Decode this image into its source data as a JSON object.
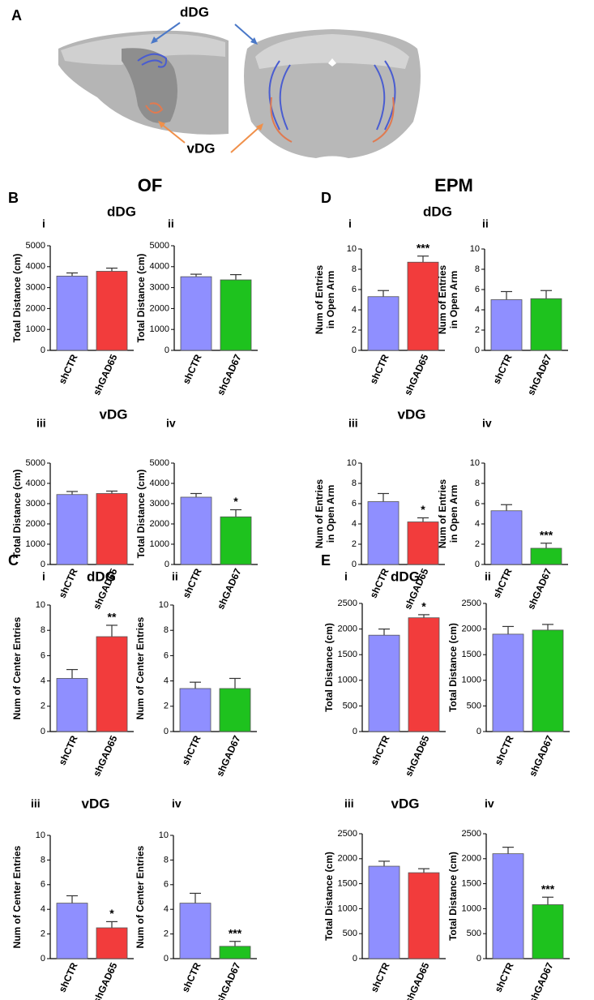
{
  "panel_a": {
    "label": "A",
    "dorsal": "dDG",
    "ventral": "vDG"
  },
  "headers": {
    "of": "OF",
    "epm": "EPM"
  },
  "chart_data": [
    {
      "type": "bar",
      "panel": "B",
      "sublabel": "i",
      "group": "dDG",
      "ylabel": [
        "Total Distance (cm)"
      ],
      "categories": [
        "shCTR",
        "shGAD65"
      ],
      "values": [
        3550,
        3780
      ],
      "errors": [
        150,
        150
      ],
      "colors": [
        "#8f8fff",
        "#f23c3c"
      ],
      "ylim": [
        0,
        5000
      ],
      "yticks": [
        0,
        1000,
        2000,
        3000,
        4000,
        5000
      ]
    },
    {
      "type": "bar",
      "sublabel": "ii",
      "ylabel": [
        "Total Distance (cm)"
      ],
      "categories": [
        "shCTR",
        "shGAD67"
      ],
      "values": [
        3520,
        3370
      ],
      "errors": [
        120,
        250
      ],
      "colors": [
        "#8f8fff",
        "#1ec21e"
      ],
      "ylim": [
        0,
        5000
      ],
      "yticks": [
        0,
        1000,
        2000,
        3000,
        4000,
        5000
      ]
    },
    {
      "type": "bar",
      "sublabel": "iii",
      "group": "vDG",
      "ylabel": [
        "Total Distance (cm)"
      ],
      "categories": [
        "shCTR",
        "shGAD65"
      ],
      "values": [
        3450,
        3500
      ],
      "errors": [
        150,
        120
      ],
      "colors": [
        "#8f8fff",
        "#f23c3c"
      ],
      "ylim": [
        0,
        5000
      ],
      "yticks": [
        0,
        1000,
        2000,
        3000,
        4000,
        5000
      ]
    },
    {
      "type": "bar",
      "sublabel": "iv",
      "ylabel": [
        "Total Distance (cm)"
      ],
      "categories": [
        "shCTR",
        "shGAD67"
      ],
      "values": [
        3320,
        2350
      ],
      "errors": [
        180,
        350
      ],
      "colors": [
        "#8f8fff",
        "#1ec21e"
      ],
      "ylim": [
        0,
        5000
      ],
      "yticks": [
        0,
        1000,
        2000,
        3000,
        4000,
        5000
      ],
      "annotation": "*"
    },
    {
      "type": "bar",
      "panel": "C",
      "sublabel": "i",
      "group": "dDG",
      "ylabel": [
        "Num of Center Entries"
      ],
      "categories": [
        "shCTR",
        "shGAD65"
      ],
      "values": [
        4.2,
        7.5
      ],
      "errors": [
        0.7,
        0.9
      ],
      "colors": [
        "#8f8fff",
        "#f23c3c"
      ],
      "ylim": [
        0,
        10
      ],
      "yticks": [
        0,
        2,
        4,
        6,
        8,
        10
      ],
      "annotation": "**"
    },
    {
      "type": "bar",
      "sublabel": "ii",
      "ylabel": [
        "Num of Center Entries"
      ],
      "categories": [
        "shCTR",
        "shGAD67"
      ],
      "values": [
        3.4,
        3.4
      ],
      "errors": [
        0.5,
        0.8
      ],
      "colors": [
        "#8f8fff",
        "#1ec21e"
      ],
      "ylim": [
        0,
        10
      ],
      "yticks": [
        0,
        2,
        4,
        6,
        8,
        10
      ]
    },
    {
      "type": "bar",
      "sublabel": "iii",
      "group": "vDG",
      "ylabel": [
        "Num of Center Entries"
      ],
      "categories": [
        "shCTR",
        "shGAD65"
      ],
      "values": [
        4.5,
        2.5
      ],
      "errors": [
        0.6,
        0.5
      ],
      "colors": [
        "#8f8fff",
        "#f23c3c"
      ],
      "ylim": [
        0,
        10
      ],
      "yticks": [
        0,
        2,
        4,
        6,
        8,
        10
      ],
      "annotation": "*"
    },
    {
      "type": "bar",
      "sublabel": "iv",
      "ylabel": [
        "Num of Center Entries"
      ],
      "categories": [
        "shCTR",
        "shGAD67"
      ],
      "values": [
        4.5,
        1.0
      ],
      "errors": [
        0.8,
        0.4
      ],
      "colors": [
        "#8f8fff",
        "#1ec21e"
      ],
      "ylim": [
        0,
        10
      ],
      "yticks": [
        0,
        2,
        4,
        6,
        8,
        10
      ],
      "annotation": "***"
    },
    {
      "type": "bar",
      "panel": "D",
      "sublabel": "i",
      "group": "dDG",
      "ylabel": [
        "Num of Entries",
        "in Open Arm"
      ],
      "categories": [
        "shCTR",
        "shGAD65"
      ],
      "values": [
        5.3,
        8.7
      ],
      "errors": [
        0.6,
        0.6
      ],
      "colors": [
        "#8f8fff",
        "#f23c3c"
      ],
      "ylim": [
        0,
        10
      ],
      "yticks": [
        0,
        2,
        4,
        6,
        8,
        10
      ],
      "annotation": "***"
    },
    {
      "type": "bar",
      "sublabel": "ii",
      "ylabel": [
        "Num of Entries",
        "in Open Arm"
      ],
      "categories": [
        "shCTR",
        "shGAD67"
      ],
      "values": [
        5.0,
        5.1
      ],
      "errors": [
        0.8,
        0.8
      ],
      "colors": [
        "#8f8fff",
        "#1ec21e"
      ],
      "ylim": [
        0,
        10
      ],
      "yticks": [
        0,
        2,
        4,
        6,
        8,
        10
      ]
    },
    {
      "type": "bar",
      "sublabel": "iii",
      "group": "vDG",
      "ylabel": [
        "Num of Entries",
        "in Open Arm"
      ],
      "categories": [
        "shCTR",
        "shGAD65"
      ],
      "values": [
        6.2,
        4.2
      ],
      "errors": [
        0.8,
        0.4
      ],
      "colors": [
        "#8f8fff",
        "#f23c3c"
      ],
      "ylim": [
        0,
        10
      ],
      "yticks": [
        0,
        2,
        4,
        6,
        8,
        10
      ],
      "annotation": "*"
    },
    {
      "type": "bar",
      "sublabel": "iv",
      "ylabel": [
        "Num of Entries",
        "in Open Arm"
      ],
      "categories": [
        "shCTR",
        "shGAD67"
      ],
      "values": [
        5.3,
        1.6
      ],
      "errors": [
        0.6,
        0.5
      ],
      "colors": [
        "#8f8fff",
        "#1ec21e"
      ],
      "ylim": [
        0,
        10
      ],
      "yticks": [
        0,
        2,
        4,
        6,
        8,
        10
      ],
      "annotation": "***"
    },
    {
      "type": "bar",
      "panel": "E",
      "sublabel": "i",
      "group": "dDG",
      "ylabel": [
        "Total Distance (cm)"
      ],
      "categories": [
        "shCTR",
        "shGAD65"
      ],
      "values": [
        1880,
        2220
      ],
      "errors": [
        120,
        60
      ],
      "colors": [
        "#8f8fff",
        "#f23c3c"
      ],
      "ylim": [
        0,
        2500
      ],
      "yticks": [
        0,
        500,
        1000,
        1500,
        2000,
        2500
      ],
      "annotation": "*"
    },
    {
      "type": "bar",
      "sublabel": "ii",
      "ylabel": [
        "Total Distance (cm)"
      ],
      "categories": [
        "shCTR",
        "shGAD67"
      ],
      "values": [
        1900,
        1980
      ],
      "errors": [
        150,
        110
      ],
      "colors": [
        "#8f8fff",
        "#1ec21e"
      ],
      "ylim": [
        0,
        2500
      ],
      "yticks": [
        0,
        500,
        1000,
        1500,
        2000,
        2500
      ]
    },
    {
      "type": "bar",
      "sublabel": "iii",
      "group": "vDG",
      "ylabel": [
        "Total Distance (cm)"
      ],
      "categories": [
        "shCTR",
        "shGAD65"
      ],
      "values": [
        1850,
        1720
      ],
      "errors": [
        100,
        80
      ],
      "colors": [
        "#8f8fff",
        "#f23c3c"
      ],
      "ylim": [
        0,
        2500
      ],
      "yticks": [
        0,
        500,
        1000,
        1500,
        2000,
        2500
      ]
    },
    {
      "type": "bar",
      "sublabel": "iv",
      "ylabel": [
        "Total Distance (cm)"
      ],
      "categories": [
        "shCTR",
        "shGAD67"
      ],
      "values": [
        2100,
        1080
      ],
      "errors": [
        130,
        150
      ],
      "colors": [
        "#8f8fff",
        "#1ec21e"
      ],
      "ylim": [
        0,
        2500
      ],
      "yticks": [
        0,
        500,
        1000,
        1500,
        2000,
        2500
      ],
      "annotation": "***"
    }
  ]
}
